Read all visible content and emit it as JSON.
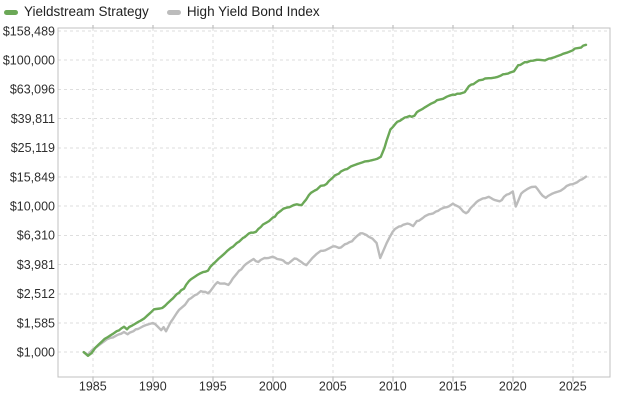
{
  "chart_data": {
    "type": "line",
    "title": "",
    "y_axis": {
      "scale": "log",
      "range": [
        676,
        166200
      ],
      "tick_prefix": "$",
      "ticks": [
        {
          "label": "$158,489",
          "value": 158489
        },
        {
          "label": "$100,000",
          "value": 100000
        },
        {
          "label": "$63,096",
          "value": 63096
        },
        {
          "label": "$39,811",
          "value": 39811
        },
        {
          "label": "$25,119",
          "value": 25119
        },
        {
          "label": "$15,849",
          "value": 15849
        },
        {
          "label": "$10,000",
          "value": 10000
        },
        {
          "label": "$6,310",
          "value": 6310
        },
        {
          "label": "$3,981",
          "value": 3981
        },
        {
          "label": "$2,512",
          "value": 2512
        },
        {
          "label": "$1,585",
          "value": 1585
        },
        {
          "label": "$1,000",
          "value": 1000
        }
      ]
    },
    "x_axis": {
      "range": [
        1982.1,
        2028.1
      ],
      "ticks": [
        {
          "label": "1985",
          "value": 1985
        },
        {
          "label": "1990",
          "value": 1990
        },
        {
          "label": "1995",
          "value": 1995
        },
        {
          "label": "2000",
          "value": 2000
        },
        {
          "label": "2005",
          "value": 2005
        },
        {
          "label": "2010",
          "value": 2010
        },
        {
          "label": "2015",
          "value": 2015
        },
        {
          "label": "2020",
          "value": 2020
        },
        {
          "label": "2025",
          "value": 2025
        }
      ]
    },
    "grid": true,
    "legend_position": "top-left",
    "series": [
      {
        "name": "Yieldstream Strategy",
        "color": "#6BA857",
        "points": [
          [
            1984.25,
            1000
          ],
          [
            1984.6,
            945
          ],
          [
            1984.9,
            985
          ],
          [
            1985.2,
            1070
          ],
          [
            1985.6,
            1150
          ],
          [
            1986.0,
            1235
          ],
          [
            1986.5,
            1310
          ],
          [
            1987.0,
            1395
          ],
          [
            1987.6,
            1495
          ],
          [
            1987.85,
            1435
          ],
          [
            1988.3,
            1525
          ],
          [
            1988.8,
            1615
          ],
          [
            1989.3,
            1705
          ],
          [
            1989.8,
            1860
          ],
          [
            1990.1,
            1965
          ],
          [
            1990.6,
            1990
          ],
          [
            1991.0,
            2070
          ],
          [
            1991.5,
            2270
          ],
          [
            1992.0,
            2500
          ],
          [
            1992.6,
            2720
          ],
          [
            1993.0,
            3060
          ],
          [
            1993.5,
            3290
          ],
          [
            1994.0,
            3480
          ],
          [
            1994.6,
            3620
          ],
          [
            1995.0,
            4000
          ],
          [
            1995.5,
            4380
          ],
          [
            1996.0,
            4760
          ],
          [
            1996.5,
            5180
          ],
          [
            1997.0,
            5600
          ],
          [
            1997.5,
            6050
          ],
          [
            1998.0,
            6500
          ],
          [
            1998.6,
            6680
          ],
          [
            1999.0,
            7200
          ],
          [
            1999.5,
            7750
          ],
          [
            2000.0,
            8350
          ],
          [
            2000.7,
            9350
          ],
          [
            2001.2,
            9800
          ],
          [
            2001.6,
            10050
          ],
          [
            2002.0,
            10300
          ],
          [
            2002.4,
            10150
          ],
          [
            2003.0,
            11900
          ],
          [
            2003.5,
            12800
          ],
          [
            2004.0,
            13800
          ],
          [
            2004.3,
            13900
          ],
          [
            2005.0,
            15700
          ],
          [
            2005.5,
            16700
          ],
          [
            2006.0,
            17800
          ],
          [
            2006.5,
            18700
          ],
          [
            2007.0,
            19400
          ],
          [
            2007.5,
            20000
          ],
          [
            2008.0,
            20400
          ],
          [
            2008.5,
            20900
          ],
          [
            2009.0,
            21800
          ],
          [
            2009.3,
            25000
          ],
          [
            2009.8,
            33500
          ],
          [
            2010.2,
            36500
          ],
          [
            2010.6,
            38500
          ],
          [
            2011.0,
            40500
          ],
          [
            2011.4,
            41500
          ],
          [
            2011.8,
            41600
          ],
          [
            2012.0,
            44000
          ],
          [
            2012.5,
            46500
          ],
          [
            2013.0,
            49300
          ],
          [
            2013.5,
            51700
          ],
          [
            2014.0,
            54000
          ],
          [
            2014.5,
            56200
          ],
          [
            2015.0,
            58100
          ],
          [
            2015.6,
            59000
          ],
          [
            2016.0,
            60500
          ],
          [
            2016.35,
            66500
          ],
          [
            2017.0,
            71300
          ],
          [
            2017.5,
            73500
          ],
          [
            2018.0,
            75300
          ],
          [
            2018.5,
            76000
          ],
          [
            2019.0,
            78400
          ],
          [
            2019.6,
            81000
          ],
          [
            2020.1,
            84000
          ],
          [
            2020.45,
            92500
          ],
          [
            2021.0,
            97000
          ],
          [
            2021.5,
            99000
          ],
          [
            2022.0,
            100600
          ],
          [
            2022.5,
            100000
          ],
          [
            2023.0,
            102400
          ],
          [
            2023.5,
            105000
          ],
          [
            2024.0,
            108700
          ],
          [
            2024.5,
            112500
          ],
          [
            2025.0,
            117000
          ],
          [
            2025.5,
            121500
          ],
          [
            2026.1,
            127500
          ]
        ]
      },
      {
        "name": "High Yield Bond Index",
        "color": "#BCBCBC",
        "points": [
          [
            1984.25,
            1000
          ],
          [
            1984.6,
            960
          ],
          [
            1985.0,
            1045
          ],
          [
            1985.5,
            1115
          ],
          [
            1986.0,
            1195
          ],
          [
            1986.5,
            1255
          ],
          [
            1987.0,
            1305
          ],
          [
            1987.6,
            1375
          ],
          [
            1987.9,
            1325
          ],
          [
            1988.4,
            1395
          ],
          [
            1989.0,
            1475
          ],
          [
            1989.5,
            1540
          ],
          [
            1990.0,
            1585
          ],
          [
            1990.4,
            1500
          ],
          [
            1990.7,
            1415
          ],
          [
            1990.9,
            1485
          ],
          [
            1991.1,
            1390
          ],
          [
            1991.5,
            1610
          ],
          [
            1992.0,
            1855
          ],
          [
            1992.5,
            2050
          ],
          [
            1993.0,
            2300
          ],
          [
            1993.5,
            2455
          ],
          [
            1994.0,
            2620
          ],
          [
            1994.6,
            2530
          ],
          [
            1995.0,
            2760
          ],
          [
            1995.4,
            3020
          ],
          [
            1995.8,
            2950
          ],
          [
            1996.3,
            2890
          ],
          [
            1997.0,
            3450
          ],
          [
            1997.6,
            3900
          ],
          [
            1998.4,
            4350
          ],
          [
            1998.8,
            4150
          ],
          [
            1999.3,
            4420
          ],
          [
            2000.0,
            4510
          ],
          [
            2000.7,
            4300
          ],
          [
            2001.3,
            4050
          ],
          [
            2001.8,
            4380
          ],
          [
            2002.2,
            4240
          ],
          [
            2002.8,
            3950
          ],
          [
            2003.3,
            4420
          ],
          [
            2004.0,
            4950
          ],
          [
            2004.7,
            5150
          ],
          [
            2005.0,
            5300
          ],
          [
            2005.5,
            5180
          ],
          [
            2006.0,
            5480
          ],
          [
            2006.6,
            5750
          ],
          [
            2007.3,
            6520
          ],
          [
            2007.8,
            6350
          ],
          [
            2008.3,
            6000
          ],
          [
            2008.65,
            5600
          ],
          [
            2008.95,
            4420
          ],
          [
            2009.3,
            5150
          ],
          [
            2009.7,
            6050
          ],
          [
            2010.0,
            6700
          ],
          [
            2010.5,
            7250
          ],
          [
            2011.2,
            7600
          ],
          [
            2011.7,
            7300
          ],
          [
            2012.0,
            7900
          ],
          [
            2012.5,
            8300
          ],
          [
            2013.0,
            8800
          ],
          [
            2013.6,
            9200
          ],
          [
            2014.3,
            9800
          ],
          [
            2015.0,
            10400
          ],
          [
            2015.5,
            9900
          ],
          [
            2016.1,
            8950
          ],
          [
            2016.8,
            10300
          ],
          [
            2017.5,
            11300
          ],
          [
            2018.0,
            11600
          ],
          [
            2018.9,
            10800
          ],
          [
            2019.5,
            12000
          ],
          [
            2020.0,
            12600
          ],
          [
            2020.25,
            9950
          ],
          [
            2020.7,
            12200
          ],
          [
            2021.2,
            13100
          ],
          [
            2021.9,
            13600
          ],
          [
            2022.3,
            12300
          ],
          [
            2022.75,
            11400
          ],
          [
            2023.3,
            12200
          ],
          [
            2023.8,
            12600
          ],
          [
            2024.3,
            13300
          ],
          [
            2024.8,
            14100
          ],
          [
            2025.2,
            14400
          ],
          [
            2025.6,
            15100
          ],
          [
            2026.1,
            15950
          ]
        ]
      }
    ]
  }
}
